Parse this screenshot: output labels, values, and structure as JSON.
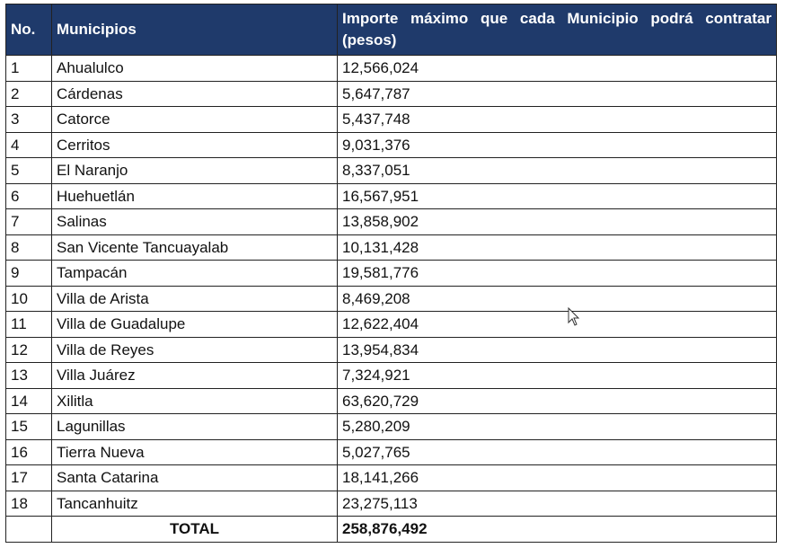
{
  "table": {
    "header": [
      "No.",
      "Municipios",
      "Importe máximo que cada Municipio podrá contratar (pesos)"
    ],
    "rows": [
      [
        "1",
        "Ahualulco",
        "12,566,024"
      ],
      [
        "2",
        "Cárdenas",
        "5,647,787"
      ],
      [
        "3",
        "Catorce",
        "5,437,748"
      ],
      [
        "4",
        "Cerritos",
        "9,031,376"
      ],
      [
        "5",
        "El Naranjo",
        "8,337,051"
      ],
      [
        "6",
        "Huehuetlán",
        "16,567,951"
      ],
      [
        "7",
        "Salinas",
        "13,858,902"
      ],
      [
        "8",
        "San Vicente Tancuayalab",
        "10,131,428"
      ],
      [
        "9",
        "Tampacán",
        "19,581,776"
      ],
      [
        "10",
        "Villa de Arista",
        "8,469,208"
      ],
      [
        "11",
        "Villa de Guadalupe",
        "12,622,404"
      ],
      [
        "12",
        "Villa de Reyes",
        "13,954,834"
      ],
      [
        "13",
        "Villa Juárez",
        "7,324,921"
      ],
      [
        "14",
        "Xilitla",
        "63,620,729"
      ],
      [
        "15",
        "Lagunillas",
        "5,280,209"
      ],
      [
        "16",
        "Tierra Nueva",
        "5,027,765"
      ],
      [
        "17",
        "Santa Catarina",
        "18,141,266"
      ],
      [
        "18",
        "Tancanhuitz",
        "23,275,113"
      ]
    ],
    "total": {
      "label": "TOTAL",
      "value": "258,876,492"
    }
  }
}
